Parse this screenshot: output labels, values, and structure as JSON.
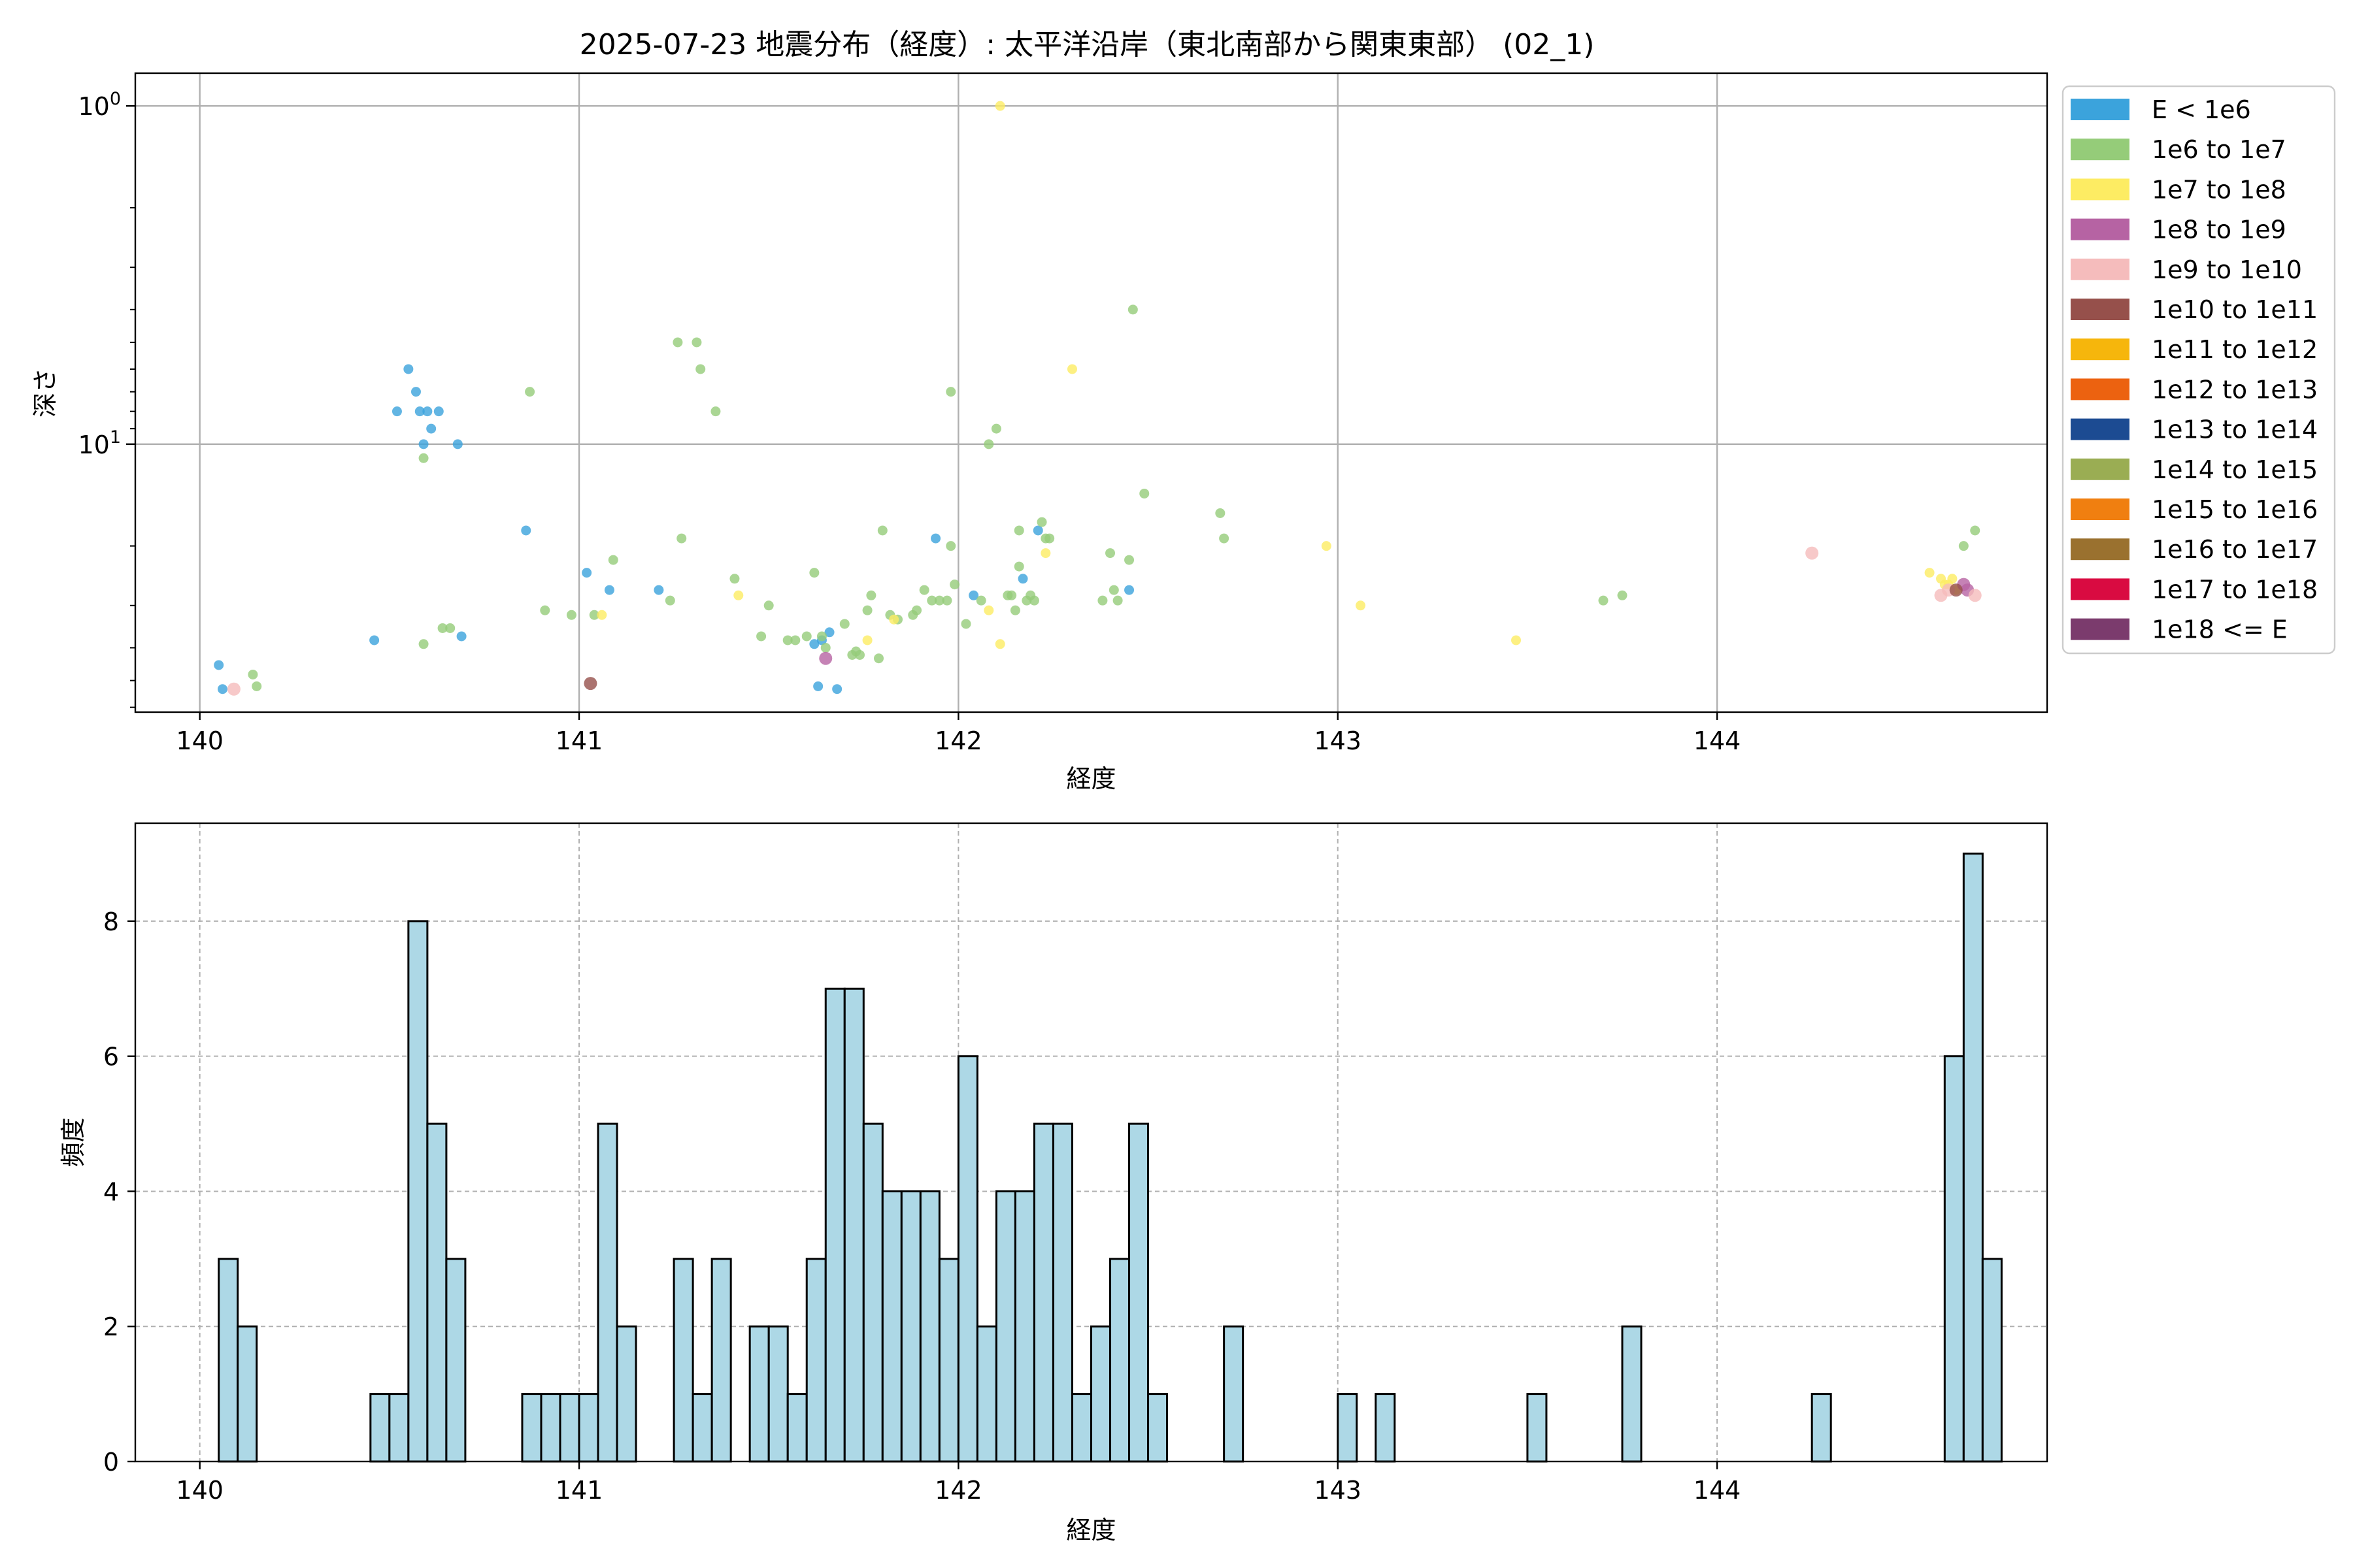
{
  "title": "2025-07-23 地震分布（経度）: 太平洋沿岸（東北南部から関東東部） (02_1)",
  "chart_data": [
    {
      "type": "scatter",
      "xlabel": "経度",
      "ylabel": "深さ",
      "xlim": [
        139.83,
        144.87
      ],
      "y_axis": "log, inverted",
      "ylim": [
        62,
        0.8
      ],
      "grid": true,
      "legend_position": "right, outside the plot",
      "x_ticks": [
        140,
        141,
        142,
        143,
        144
      ],
      "y_ticks": [
        {
          "value": 1,
          "label": "10^0"
        },
        {
          "value": 10,
          "label": "10^1"
        }
      ],
      "legend": [
        {
          "label": "E < 1e6",
          "color": "#3ba3dc"
        },
        {
          "label": "1e6 to 1e7",
          "color": "#95cc79"
        },
        {
          "label": "1e7 to 1e8",
          "color": "#fdec63"
        },
        {
          "label": "1e8 to 1e9",
          "color": "#b663a3"
        },
        {
          "label": "1e9 to 1e10",
          "color": "#f5bcbc"
        },
        {
          "label": "1e10 to 1e11",
          "color": "#96504b"
        },
        {
          "label": "1e11 to 1e12",
          "color": "#f6b60c"
        },
        {
          "label": "1e12 to 1e13",
          "color": "#ec6210"
        },
        {
          "label": "1e13 to 1e14",
          "color": "#1c4b92"
        },
        {
          "label": "1e14 to 1e15",
          "color": "#9aad53"
        },
        {
          "label": "1e15 to 1e16",
          "color": "#f07f10"
        },
        {
          "label": "1e16 to 1e17",
          "color": "#9a712f"
        },
        {
          "label": "1e17 to 1e18",
          "color": "#d90b41"
        },
        {
          "label": "1e18 <= E",
          "color": "#7b3b6d"
        }
      ],
      "series": [
        {
          "class": 0,
          "points": [
            [
              140.05,
              45
            ],
            [
              140.06,
              53
            ],
            [
              140.46,
              38
            ],
            [
              140.52,
              8
            ],
            [
              140.55,
              6
            ],
            [
              140.57,
              7
            ],
            [
              140.58,
              8
            ],
            [
              140.59,
              10
            ],
            [
              140.6,
              8
            ],
            [
              140.61,
              9
            ],
            [
              140.63,
              8
            ],
            [
              140.68,
              10
            ],
            [
              140.69,
              37
            ],
            [
              140.86,
              18
            ],
            [
              141.02,
              24
            ],
            [
              141.08,
              27
            ],
            [
              141.21,
              27
            ],
            [
              141.62,
              39
            ],
            [
              141.63,
              52
            ],
            [
              141.64,
              38
            ],
            [
              141.66,
              36
            ],
            [
              141.68,
              53
            ],
            [
              141.94,
              19
            ],
            [
              142.04,
              28
            ],
            [
              142.17,
              25
            ],
            [
              142.21,
              18
            ],
            [
              142.45,
              27
            ]
          ]
        },
        {
          "class": 1,
          "points": [
            [
              140.14,
              48
            ],
            [
              140.15,
              52
            ],
            [
              140.59,
              11
            ],
            [
              140.59,
              39
            ],
            [
              140.64,
              35
            ],
            [
              140.66,
              35
            ],
            [
              140.87,
              7
            ],
            [
              140.91,
              31
            ],
            [
              140.98,
              32
            ],
            [
              141.04,
              32
            ],
            [
              141.09,
              22
            ],
            [
              141.24,
              29
            ],
            [
              141.26,
              5
            ],
            [
              141.27,
              19
            ],
            [
              141.31,
              5
            ],
            [
              141.32,
              6
            ],
            [
              141.36,
              8
            ],
            [
              141.41,
              25
            ],
            [
              141.48,
              37
            ],
            [
              141.5,
              30
            ],
            [
              141.55,
              38
            ],
            [
              141.57,
              38
            ],
            [
              141.6,
              37
            ],
            [
              141.62,
              24
            ],
            [
              141.64,
              37
            ],
            [
              141.65,
              40
            ],
            [
              141.7,
              34
            ],
            [
              141.72,
              42
            ],
            [
              141.73,
              41
            ],
            [
              141.74,
              42
            ],
            [
              141.76,
              31
            ],
            [
              141.77,
              28
            ],
            [
              141.79,
              43
            ],
            [
              141.8,
              18
            ],
            [
              141.82,
              32
            ],
            [
              141.84,
              33
            ],
            [
              141.88,
              32
            ],
            [
              141.89,
              31
            ],
            [
              141.91,
              27
            ],
            [
              141.93,
              29
            ],
            [
              141.95,
              29
            ],
            [
              141.97,
              29
            ],
            [
              141.98,
              7
            ],
            [
              141.98,
              20
            ],
            [
              141.99,
              26
            ],
            [
              142.02,
              34
            ],
            [
              142.06,
              29
            ],
            [
              142.08,
              10
            ],
            [
              142.1,
              9
            ],
            [
              142.13,
              28
            ],
            [
              142.14,
              28
            ],
            [
              142.15,
              31
            ],
            [
              142.16,
              18
            ],
            [
              142.16,
              23
            ],
            [
              142.18,
              29
            ],
            [
              142.19,
              28
            ],
            [
              142.2,
              29
            ],
            [
              142.22,
              17
            ],
            [
              142.23,
              19
            ],
            [
              142.24,
              19
            ],
            [
              142.38,
              29
            ],
            [
              142.4,
              21
            ],
            [
              142.41,
              27
            ],
            [
              142.42,
              29
            ],
            [
              142.45,
              22
            ],
            [
              142.46,
              4
            ],
            [
              142.49,
              14
            ],
            [
              142.69,
              16
            ],
            [
              142.7,
              19
            ],
            [
              143.7,
              29
            ],
            [
              143.75,
              28
            ],
            [
              144.65,
              20
            ],
            [
              144.68,
              18
            ]
          ]
        },
        {
          "class": 2,
          "points": [
            [
              141.06,
              32
            ],
            [
              141.42,
              28
            ],
            [
              141.76,
              38
            ],
            [
              141.83,
              33
            ],
            [
              142.08,
              31
            ],
            [
              142.11,
              39
            ],
            [
              142.11,
              1
            ],
            [
              142.23,
              21
            ],
            [
              142.3,
              6
            ],
            [
              142.97,
              20
            ],
            [
              143.06,
              30
            ],
            [
              143.47,
              38
            ],
            [
              144.56,
              24
            ],
            [
              144.59,
              25
            ],
            [
              144.6,
              26
            ],
            [
              144.61,
              26
            ],
            [
              144.62,
              25
            ],
            [
              144.63,
              27
            ]
          ]
        },
        {
          "class": 3,
          "points": [
            [
              141.65,
              43
            ],
            [
              144.65,
              26
            ],
            [
              144.66,
              27
            ]
          ]
        },
        {
          "class": 4,
          "points": [
            [
              140.09,
              53
            ],
            [
              144.25,
              21
            ],
            [
              144.59,
              28
            ],
            [
              144.61,
              27
            ],
            [
              144.68,
              28
            ]
          ]
        },
        {
          "class": 5,
          "points": [
            [
              141.03,
              51
            ],
            [
              144.63,
              27
            ]
          ]
        }
      ]
    },
    {
      "type": "bar",
      "subtype": "histogram",
      "xlabel": "経度",
      "ylabel": "頻度",
      "xlim": [
        139.83,
        144.87
      ],
      "ylim": [
        0,
        9.45
      ],
      "grid": true,
      "x_ticks": [
        140,
        141,
        142,
        143,
        144
      ],
      "y_ticks": [
        0,
        2,
        4,
        6,
        8
      ],
      "bin_start": 140.05,
      "bin_width": 0.05,
      "values": [
        3,
        2,
        0,
        0,
        0,
        0,
        0,
        0,
        1,
        1,
        8,
        5,
        3,
        0,
        0,
        0,
        1,
        1,
        1,
        1,
        5,
        2,
        0,
        0,
        3,
        1,
        3,
        0,
        2,
        2,
        1,
        3,
        7,
        7,
        5,
        4,
        4,
        4,
        3,
        6,
        2,
        4,
        4,
        5,
        5,
        1,
        2,
        3,
        5,
        1,
        0,
        0,
        0,
        2,
        0,
        0,
        0,
        0,
        0,
        1,
        0,
        1,
        0,
        0,
        0,
        0,
        0,
        0,
        0,
        1,
        0,
        0,
        0,
        0,
        2,
        0,
        0,
        0,
        0,
        0,
        0,
        0,
        0,
        0,
        1,
        0,
        0,
        0,
        0,
        0,
        0,
        6,
        9,
        3
      ]
    }
  ]
}
